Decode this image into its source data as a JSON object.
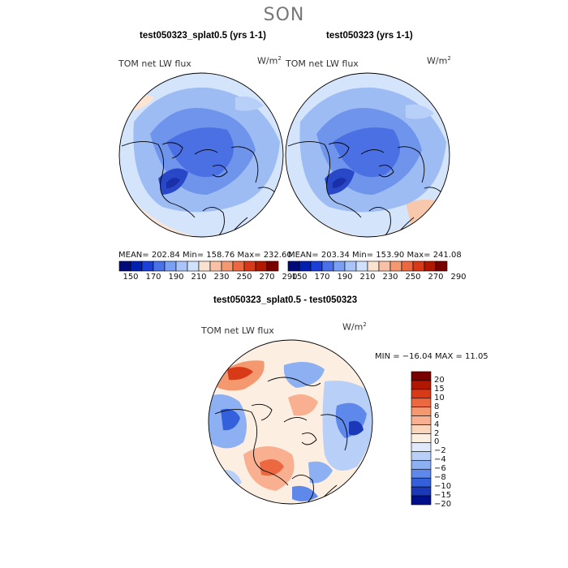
{
  "season": "SON",
  "panels": [
    {
      "title": "test050323_splat0.5 (yrs 1-1)",
      "variable": "TOM net LW flux",
      "units": "W/m",
      "units_sup": "2",
      "mean": "202.84",
      "min": "158.76",
      "max": "232.60",
      "stats_text": "MEAN= 202.84   Min= 158.76   Max= 232.60"
    },
    {
      "title": "test050323 (yrs 1-1)",
      "variable": "TOM net LW flux",
      "units": "W/m",
      "units_sup": "2",
      "mean": "203.34",
      "min": "153.90",
      "max": "241.08",
      "stats_text": "MEAN= 203.34   Min= 153.90   Max= 241.08"
    }
  ],
  "colorbar_top": {
    "ticks": [
      "150",
      "170",
      "190",
      "210",
      "230",
      "250",
      "270",
      "290"
    ],
    "colors": [
      "#000a7a",
      "#0020b0",
      "#1a40d8",
      "#4a70ea",
      "#7aa0f4",
      "#a8c4f8",
      "#d0e2fb",
      "#fbe2d0",
      "#f8c0a4",
      "#f49870",
      "#ec6840",
      "#d83a18",
      "#b01800",
      "#7a0000"
    ]
  },
  "diff": {
    "title": "test050323_splat0.5 - test050323",
    "variable": "TOM net LW flux",
    "units": "W/m",
    "units_sup": "2",
    "stats_text": "MIN = −16.04  MAX =   11.05",
    "min": "-16.04",
    "max": "11.05"
  },
  "colorbar_diff": {
    "ticks": [
      "20",
      "15",
      "10",
      "8",
      "6",
      "4",
      "2",
      "0",
      "−2",
      "−4",
      "−6",
      "−8",
      "−10",
      "−15",
      "−20"
    ],
    "colors": [
      "#7a0000",
      "#b01800",
      "#d83a18",
      "#ec6840",
      "#f49870",
      "#f8b090",
      "#fbd4bc",
      "#fdeee2",
      "#dfe9fb",
      "#b8d0f8",
      "#8cb0f2",
      "#5e88ea",
      "#3460dc",
      "#1a38b8",
      "#00108a"
    ]
  }
}
